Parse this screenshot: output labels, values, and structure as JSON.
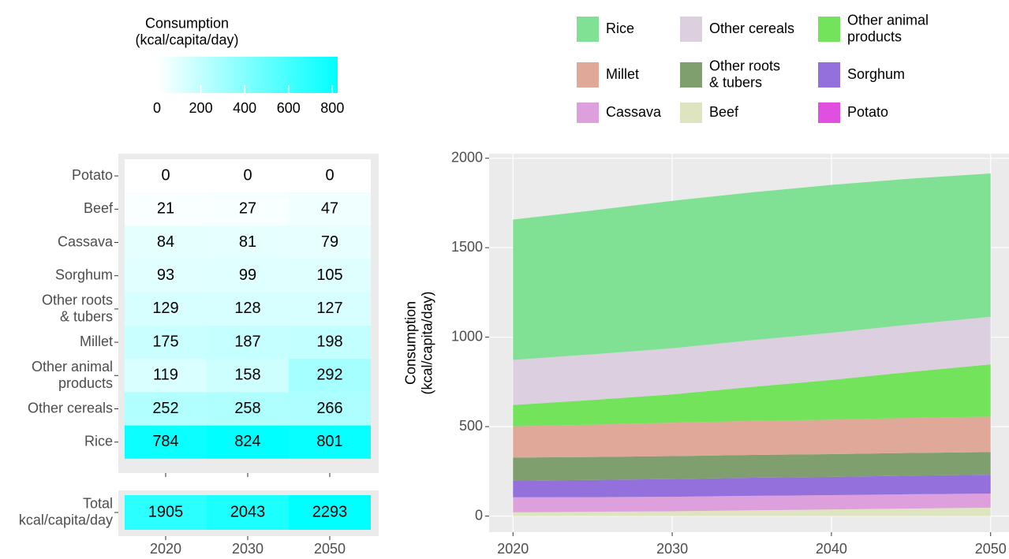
{
  "chart_data": [
    {
      "type": "heatmap",
      "categories": [
        "Potato",
        "Beef",
        "Cassava",
        "Sorghum",
        "Other roots\n& tubers",
        "Millet",
        "Other animal\nproducts",
        "Other cereals",
        "Rice"
      ],
      "values": [
        [
          0,
          0,
          0
        ],
        [
          21,
          27,
          47
        ],
        [
          84,
          81,
          79
        ],
        [
          93,
          99,
          105
        ],
        [
          129,
          128,
          127
        ],
        [
          175,
          187,
          198
        ],
        [
          119,
          158,
          292
        ],
        [
          252,
          258,
          266
        ],
        [
          784,
          824,
          801
        ]
      ],
      "colorbar": {
        "title": "Consumption\n(kcal/capita/day)",
        "lim": [
          0,
          824
        ],
        "ticks": [
          0,
          200,
          400,
          600,
          800
        ]
      },
      "color_low": "#ffffff",
      "color_high": "#00ffff"
    },
    {
      "type": "heatmap",
      "categories": [
        "Total\nkcal/capita/day"
      ],
      "x": [
        "2020",
        "2030",
        "2050"
      ],
      "values": [
        [
          1905,
          2043,
          2293
        ]
      ],
      "clim": [
        0,
        2293
      ],
      "color_low": "#ffffff",
      "color_high": "#00ffff"
    },
    {
      "type": "area",
      "ylabel": "Consumption\n(kcal/capita/day)",
      "x": [
        2020,
        2025,
        2030,
        2035,
        2040,
        2045,
        2050
      ],
      "series": [
        {
          "name": "Potato",
          "color": "#e04fe0",
          "values": [
            0,
            0,
            0,
            0,
            0,
            0,
            0
          ]
        },
        {
          "name": "Beef",
          "color": "#dfe4c0",
          "values": [
            21,
            24,
            27,
            32,
            37,
            42,
            47
          ]
        },
        {
          "name": "Cassava",
          "color": "#dda0dd",
          "values": [
            84,
            82,
            81,
            81,
            80,
            80,
            79
          ]
        },
        {
          "name": "Sorghum",
          "color": "#9370db",
          "values": [
            93,
            96,
            99,
            101,
            102,
            104,
            105
          ]
        },
        {
          "name": "Other roots\n& tubers",
          "color": "#7f9f6f",
          "values": [
            129,
            128,
            128,
            128,
            127,
            127,
            127
          ]
        },
        {
          "name": "Millet",
          "color": "#e0a898",
          "values": [
            175,
            181,
            187,
            190,
            193,
            196,
            198
          ]
        },
        {
          "name": "Other animal\nproducts",
          "color": "#72e35a",
          "values": [
            119,
            138,
            158,
            190,
            222,
            257,
            292
          ]
        },
        {
          "name": "Other cereals",
          "color": "#dcd0e0",
          "values": [
            252,
            255,
            258,
            261,
            263,
            265,
            266
          ]
        },
        {
          "name": "Rice",
          "color": "#80e093",
          "values": [
            784,
            804,
            824,
            826,
            827,
            815,
            801
          ]
        }
      ],
      "xlim": [
        2018.5,
        2051.5
      ],
      "ylim": [
        -90,
        2025
      ],
      "xticks": [
        2020,
        2030,
        2040,
        2050
      ],
      "yticks": [
        0,
        500,
        1000,
        1500,
        2000
      ],
      "grid": true,
      "legend": "top"
    }
  ]
}
